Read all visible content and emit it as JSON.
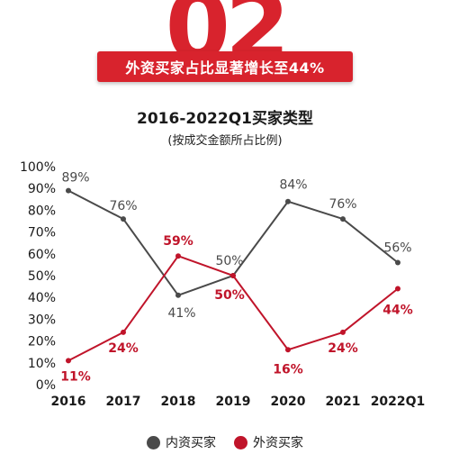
{
  "header": {
    "section_number": "02",
    "headline": "外资买家占比显著增长至44%"
  },
  "colors": {
    "accent": "#d8232d",
    "series_domestic": "#4a4a4a",
    "series_foreign": "#c0142a"
  },
  "chart_data": {
    "type": "line",
    "title": "2016-2022Q1买家类型",
    "subtitle": "(按成交金额所占比例)",
    "categories": [
      "2016",
      "2017",
      "2018",
      "2019",
      "2020",
      "2021",
      "2022Q1"
    ],
    "y_ticks": [
      "0%",
      "10%",
      "20%",
      "30%",
      "40%",
      "50%",
      "60%",
      "70%",
      "80%",
      "90%",
      "100%"
    ],
    "ylim": [
      0,
      100
    ],
    "grid": false,
    "legend_position": "bottom",
    "series": [
      {
        "name": "内资买家",
        "values": [
          89,
          76,
          41,
          50,
          84,
          76,
          56
        ],
        "labels": [
          "89%",
          "76%",
          "41%",
          "50%",
          "84%",
          "76%",
          "56%"
        ]
      },
      {
        "name": "外资买家",
        "values": [
          11,
          24,
          59,
          50,
          16,
          24,
          44
        ],
        "labels": [
          "11%",
          "24%",
          "59%",
          "50%",
          "16%",
          "24%",
          "44%"
        ]
      }
    ]
  }
}
